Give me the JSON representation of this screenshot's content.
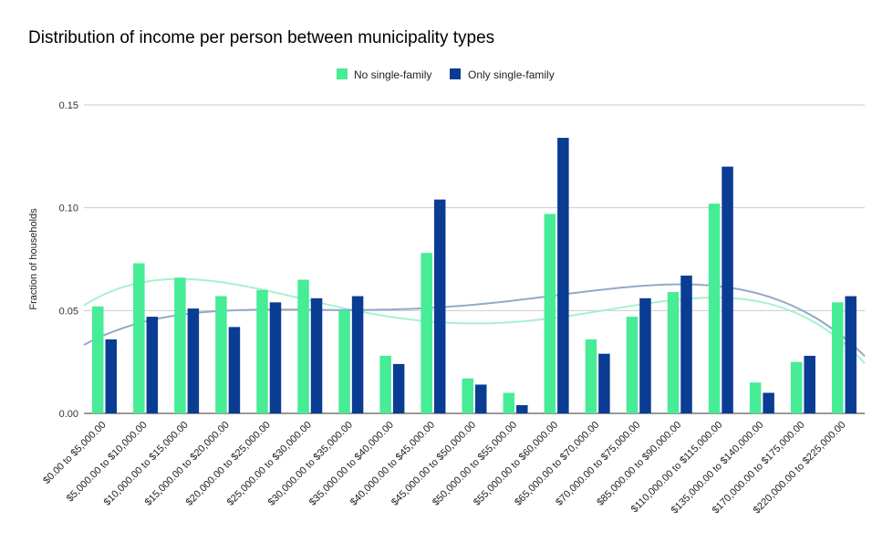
{
  "chart_data": {
    "type": "bar",
    "title": "Distribution of income per person between municipality types",
    "xlabel": "",
    "ylabel": "Fraction of households",
    "ylim": [
      0,
      0.15
    ],
    "yticks": [
      "0.00",
      "0.05",
      "0.10",
      "0.15"
    ],
    "grid": true,
    "legend_position": "top-center",
    "categories": [
      "$0.00 to $5,000.00",
      "$5,000.00 to $10,000.00",
      "$10,000.00 to $15,000.00",
      "$15,000.00 to $20,000.00",
      "$20,000.00 to $25,000.00",
      "$25,000.00 to $30,000.00",
      "$30,000.00 to $35,000.00",
      "$35,000.00 to $40,000.00",
      "$40,000.00 to $45,000.00",
      "$45,000.00 to $50,000.00",
      "$50,000.00 to $55,000.00",
      "$55,000.00 to $60,000.00",
      "$65,000.00 to $70,000.00",
      "$70,000.00 to $75,000.00",
      "$85,000.00 to $90,000.00",
      "$110,000.00 to $115,000.00",
      "$135,000.00 to $140,000.00",
      "$170,000.00 to $175,000.00",
      "$220,000.00 to $225,000.00"
    ],
    "series": [
      {
        "name": "No single-family",
        "color": "#46ec96",
        "trend_color": "#a6f2cc",
        "values": [
          0.052,
          0.073,
          0.066,
          0.057,
          0.06,
          0.065,
          0.05,
          0.028,
          0.078,
          0.017,
          0.01,
          0.097,
          0.036,
          0.047,
          0.059,
          0.102,
          0.015,
          0.025,
          0.054
        ]
      },
      {
        "name": "Only single-family",
        "color": "#0a3c93",
        "trend_color": "#93a9c9",
        "values": [
          0.036,
          0.047,
          0.051,
          0.042,
          0.054,
          0.056,
          0.057,
          0.024,
          0.104,
          0.014,
          0.004,
          0.134,
          0.029,
          0.056,
          0.067,
          0.12,
          0.01,
          0.028,
          0.057
        ]
      }
    ]
  }
}
